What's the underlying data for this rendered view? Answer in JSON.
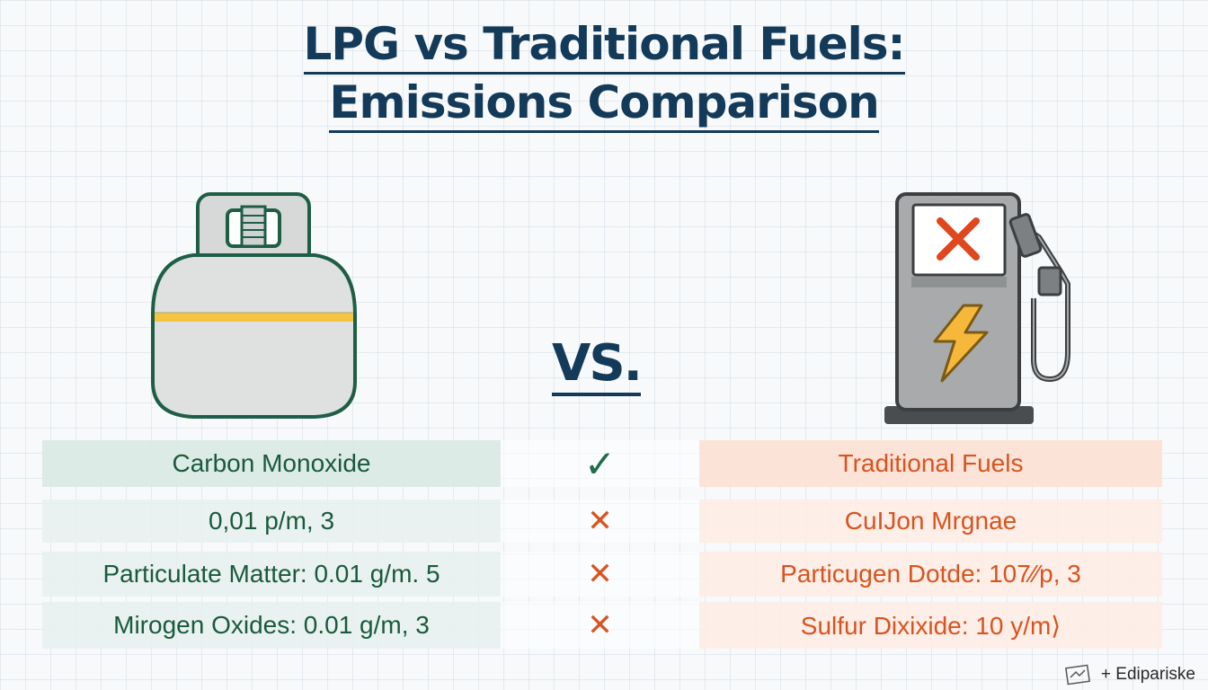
{
  "title": {
    "line1": "LPG vs Traditional Fuels:",
    "line2": "Emissions Comparison"
  },
  "vs_label": "VS.",
  "icons": {
    "left": "propane-tank-icon",
    "right": "fuel-pump-icon",
    "pump_screen": "x-mark-icon",
    "pump_badge": "lightning-icon"
  },
  "table": {
    "rows": [
      {
        "left": "Carbon Monoxide",
        "mark": "✓",
        "right": "Traditional Fuels"
      },
      {
        "left": "0,01 p/m, 3",
        "mark": "✕",
        "right": "CuIJon Mrgnae"
      },
      {
        "left": "Particulate Matter: 0.01 g/m. 5",
        "mark": "✕",
        "right": "Particugen Dotde: 107⁄⁄p, 3"
      },
      {
        "left": "Mirogen Oxides: 0.01 g/m, 3",
        "mark": "✕",
        "right": "Sulfur Dixixide: 10 y/m⟩"
      }
    ]
  },
  "footer": {
    "text": "+ Edipariske"
  },
  "colors": {
    "navy": "#143a5a",
    "green": "#1a5a3c",
    "orange": "#d9531e",
    "band_yellow": "#f4c542"
  }
}
